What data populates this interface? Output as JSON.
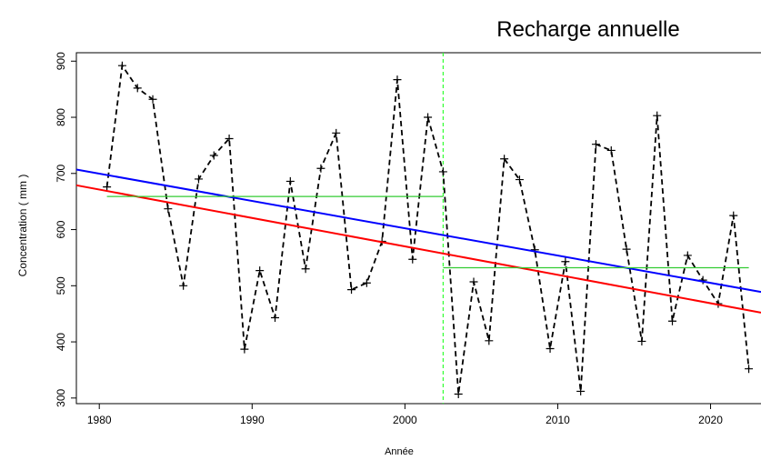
{
  "chart_data": {
    "type": "line",
    "title": "Recharge annuelle",
    "xlabel": "Année",
    "ylabel": "Concentration ( mm )",
    "xlim": [
      1978.5,
      2023.3
    ],
    "ylim": [
      290,
      915
    ],
    "xticks": [
      1980,
      1990,
      2000,
      2010,
      2020
    ],
    "yticks": [
      300,
      400,
      500,
      600,
      700,
      800,
      900
    ],
    "grid": false,
    "legend": "none",
    "series": [
      {
        "style": "dashed-with-plus-markers",
        "color": "#000000",
        "x": [
          1980.5,
          1981.5,
          1982.5,
          1983.5,
          1984.5,
          1985.5,
          1986.5,
          1987.5,
          1988.5,
          1989.5,
          1990.5,
          1991.5,
          1992.5,
          1993.5,
          1994.5,
          1995.5,
          1996.5,
          1997.5,
          1998.5,
          1999.5,
          2000.5,
          2001.5,
          2002.5,
          2003.5,
          2004.5,
          2005.5,
          2006.5,
          2007.5,
          2008.5,
          2009.5,
          2010.5,
          2011.5,
          2012.5,
          2013.5,
          2014.5,
          2015.5,
          2016.5,
          2017.5,
          2018.5,
          2019.5,
          2020.5,
          2021.5,
          2022.5
        ],
        "y": [
          676,
          892,
          852,
          832,
          637,
          500,
          690,
          732,
          762,
          387,
          527,
          443,
          686,
          530,
          709,
          772,
          493,
          505,
          579,
          867,
          547,
          800,
          703,
          307,
          507,
          402,
          726,
          689,
          564,
          388,
          543,
          312,
          752,
          741,
          565,
          401,
          803,
          437,
          554,
          510,
          468,
          625,
          352
        ]
      },
      {
        "style": "solid",
        "color": "#0000ff",
        "x": [
          1978.5,
          2023.3
        ],
        "y": [
          707,
          489
        ]
      },
      {
        "style": "solid",
        "color": "#ff0000",
        "x": [
          1978.5,
          2023.3
        ],
        "y": [
          679,
          452
        ]
      },
      {
        "style": "solid",
        "color": "#33cc33",
        "x": [
          1980.5,
          2002.5
        ],
        "y": [
          659,
          659
        ]
      },
      {
        "style": "solid",
        "color": "#33cc33",
        "x": [
          2002.5,
          2022.5
        ],
        "y": [
          532,
          532
        ]
      }
    ],
    "vlines": [
      {
        "x": 2002.5,
        "color": "#33ff33",
        "style": "dashed"
      }
    ]
  }
}
